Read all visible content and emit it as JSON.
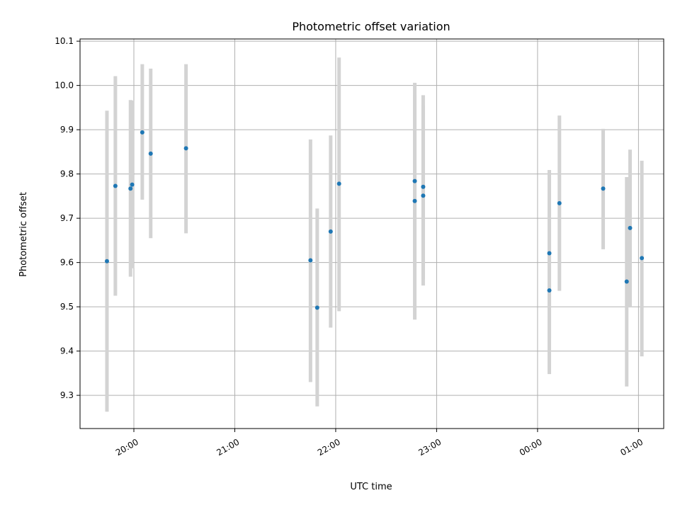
{
  "chart_data": {
    "type": "scatter",
    "title": "Photometric offset variation",
    "xlabel": "UTC time",
    "ylabel": "Photometric offset",
    "x_range": [
      "19:28",
      "01:15"
    ],
    "ylim": [
      9.225,
      10.105
    ],
    "x_ticks": [
      "20:00",
      "21:00",
      "22:00",
      "23:00",
      "00:00",
      "01:00"
    ],
    "y_ticks": [
      "9.3",
      "9.4",
      "9.5",
      "9.6",
      "9.7",
      "9.8",
      "9.9",
      "10.0",
      "10.1"
    ],
    "grid": true,
    "colors": {
      "point": "#1f77b4",
      "errorbar": "#d3d3d3",
      "grid": "#b0b0b0"
    },
    "points": [
      {
        "x": "19:44",
        "y": 9.603,
        "ylow": 9.263,
        "yhigh": 9.943
      },
      {
        "x": "19:49",
        "y": 9.773,
        "ylow": 9.525,
        "yhigh": 10.021
      },
      {
        "x": "19:58",
        "y": 9.767,
        "ylow": 9.568,
        "yhigh": 9.967
      },
      {
        "x": "19:59",
        "y": 9.776,
        "ylow": 9.587,
        "yhigh": 9.966
      },
      {
        "x": "20:05",
        "y": 9.894,
        "ylow": 9.742,
        "yhigh": 10.048
      },
      {
        "x": "20:10",
        "y": 9.846,
        "ylow": 9.655,
        "yhigh": 10.038
      },
      {
        "x": "20:31",
        "y": 9.858,
        "ylow": 9.666,
        "yhigh": 10.048
      },
      {
        "x": "21:45",
        "y": 9.605,
        "ylow": 9.33,
        "yhigh": 9.878
      },
      {
        "x": "21:49",
        "y": 9.498,
        "ylow": 9.275,
        "yhigh": 9.722
      },
      {
        "x": "21:57",
        "y": 9.67,
        "ylow": 9.453,
        "yhigh": 9.887
      },
      {
        "x": "22:02",
        "y": 9.778,
        "ylow": 9.49,
        "yhigh": 10.063
      },
      {
        "x": "22:47",
        "y": 9.784,
        "ylow": 9.59,
        "yhigh": 9.978
      },
      {
        "x": "22:47",
        "y": 9.739,
        "ylow": 9.471,
        "yhigh": 10.006
      },
      {
        "x": "22:52",
        "y": 9.771,
        "ylow": 9.563,
        "yhigh": 9.978
      },
      {
        "x": "22:52",
        "y": 9.751,
        "ylow": 9.548,
        "yhigh": 9.955
      },
      {
        "x": "00:07",
        "y": 9.621,
        "ylow": 9.43,
        "yhigh": 9.809
      },
      {
        "x": "00:07",
        "y": 9.537,
        "ylow": 9.348,
        "yhigh": 9.725
      },
      {
        "x": "00:13",
        "y": 9.734,
        "ylow": 9.536,
        "yhigh": 9.932
      },
      {
        "x": "00:39",
        "y": 9.767,
        "ylow": 9.63,
        "yhigh": 9.902
      },
      {
        "x": "00:53",
        "y": 9.557,
        "ylow": 9.32,
        "yhigh": 9.793
      },
      {
        "x": "00:55",
        "y": 9.678,
        "ylow": 9.5,
        "yhigh": 9.855
      },
      {
        "x": "01:02",
        "y": 9.61,
        "ylow": 9.388,
        "yhigh": 9.83
      }
    ]
  }
}
